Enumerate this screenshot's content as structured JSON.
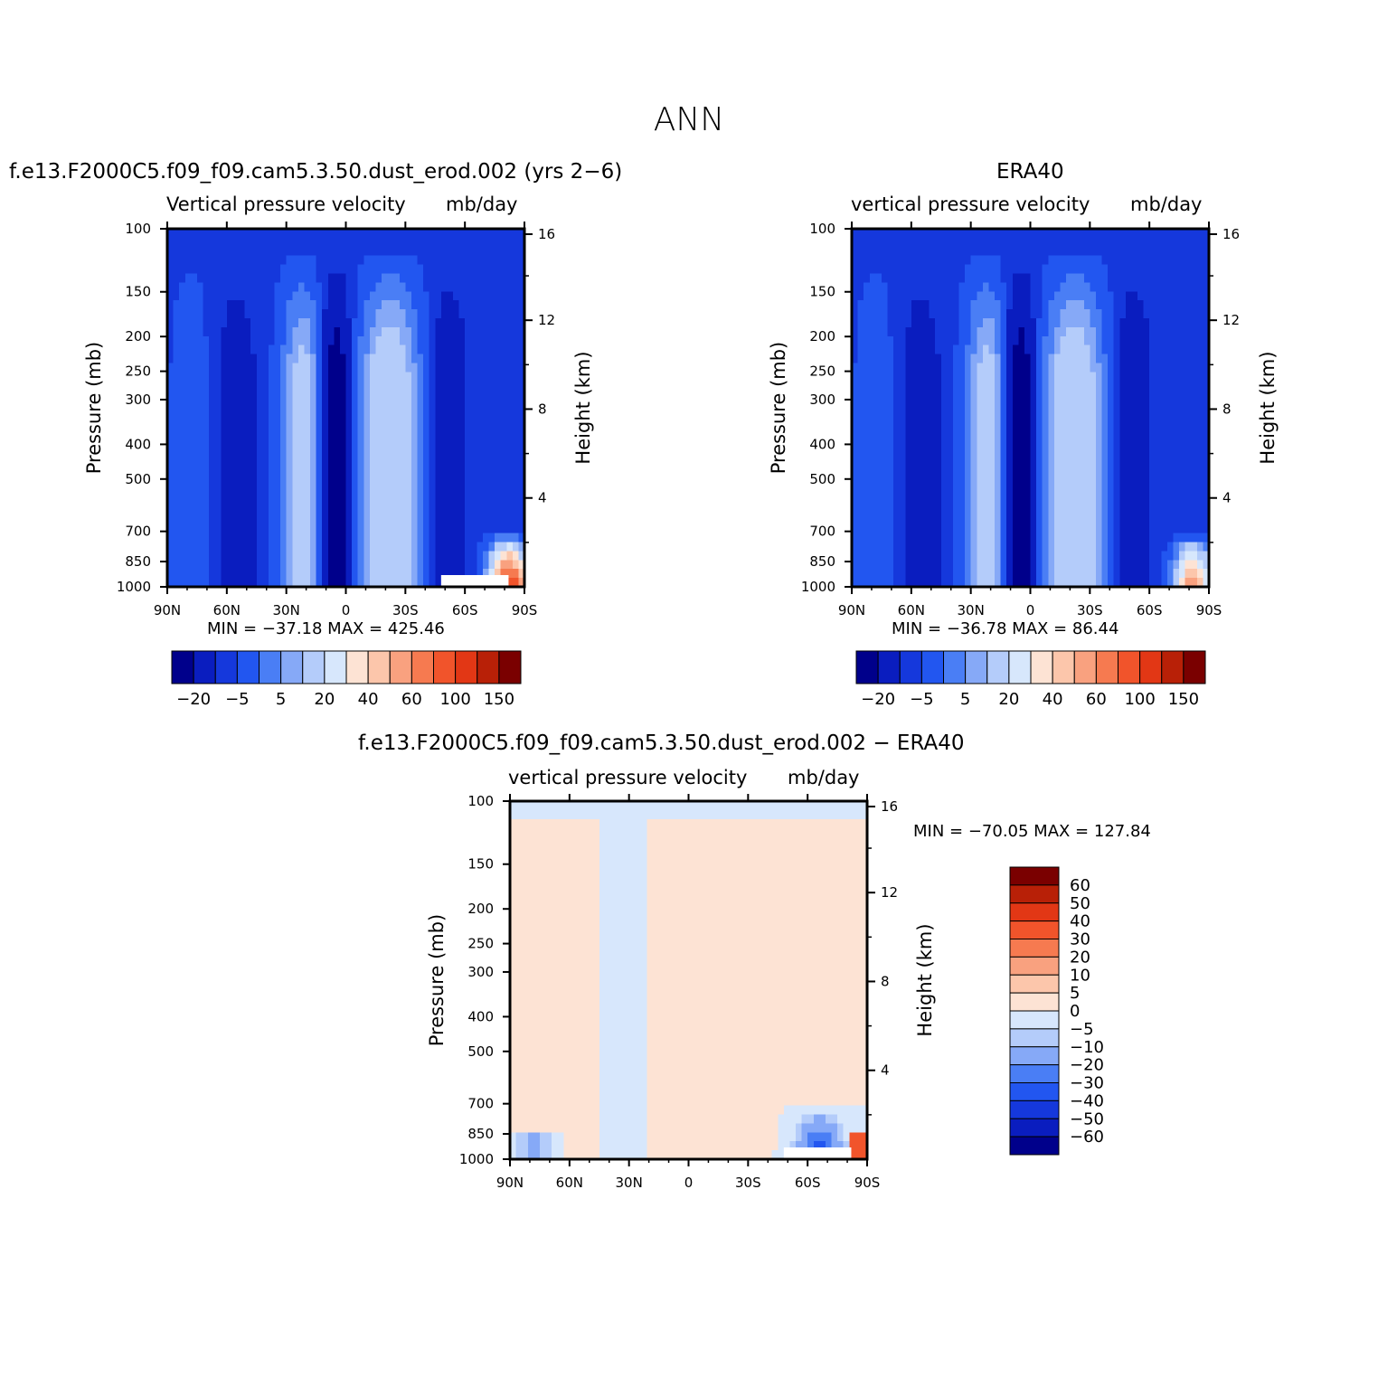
{
  "page": {
    "title": "ANN"
  },
  "panels": [
    {
      "id": "model",
      "case_title": "f.e13.F2000C5.f09_f09.cam5.3.50.dust_erod.002 (yrs 2−6)",
      "subtitle_left": "Vertical pressure velocity",
      "subtitle_right": "mb/day",
      "ylabel": "Pressure (mb)",
      "ylabel_right": "Height (km)",
      "minmax": "MIN = −37.18   MAX = 425.46"
    },
    {
      "id": "obs",
      "case_title": "ERA40",
      "subtitle_left": "vertical pressure velocity",
      "subtitle_right": "mb/day",
      "ylabel": "Pressure (mb)",
      "ylabel_right": "Height (km)",
      "minmax": "MIN = −36.78   MAX =  86.44"
    },
    {
      "id": "diff",
      "case_title": "f.e13.F2000C5.f09_f09.cam5.3.50.dust_erod.002 − ERA40",
      "subtitle_left": "vertical pressure velocity",
      "subtitle_right": "mb/day",
      "ylabel": "Pressure (mb)",
      "ylabel_right": "Height (km)",
      "minmax": "MIN = −70.05   MAX = 127.84"
    }
  ],
  "chart_data": [
    {
      "type": "heatmap",
      "panel": "model",
      "x_ticks": [
        "90N",
        "60N",
        "30N",
        "0",
        "30S",
        "60S",
        "90S"
      ],
      "x_values": [
        90,
        60,
        30,
        0,
        -30,
        -60,
        -90
      ],
      "y_ticks": [
        "100",
        "150",
        "200",
        "250",
        "300",
        "400",
        "500",
        "700",
        "850",
        "1000"
      ],
      "y_values": [
        100,
        150,
        200,
        250,
        300,
        400,
        500,
        700,
        850,
        1000
      ],
      "y_scale": "log",
      "ylim": [
        1000,
        100
      ],
      "right_y_ticks": [
        "4",
        "8",
        "12",
        "16"
      ],
      "colorbar": {
        "orientation": "horizontal",
        "labels": [
          "−20",
          "−5",
          "5",
          "20",
          "40",
          "60",
          "100",
          "150"
        ],
        "colors": [
          "#00008b",
          "#0a1dbf",
          "#1538dc",
          "#2256f0",
          "#4a7ef5",
          "#86a9f7",
          "#b4ccfa",
          "#d7e7fc",
          "#fde3d4",
          "#fcc6ab",
          "#f9a17f",
          "#f67a50",
          "#f1542b",
          "#e23715",
          "#b82007",
          "#7a0000"
        ]
      },
      "min": -37.18,
      "max": 425.46
    },
    {
      "type": "heatmap",
      "panel": "obs",
      "x_ticks": [
        "90N",
        "60N",
        "30N",
        "0",
        "30S",
        "60S",
        "90S"
      ],
      "x_values": [
        90,
        60,
        30,
        0,
        -30,
        -60,
        -90
      ],
      "y_ticks": [
        "100",
        "150",
        "200",
        "250",
        "300",
        "400",
        "500",
        "700",
        "850",
        "1000"
      ],
      "y_values": [
        100,
        150,
        200,
        250,
        300,
        400,
        500,
        700,
        850,
        1000
      ],
      "y_scale": "log",
      "ylim": [
        1000,
        100
      ],
      "right_y_ticks": [
        "4",
        "8",
        "12",
        "16"
      ],
      "colorbar": {
        "orientation": "horizontal",
        "labels": [
          "−20",
          "−5",
          "5",
          "20",
          "40",
          "60",
          "100",
          "150"
        ],
        "colors": [
          "#00008b",
          "#0a1dbf",
          "#1538dc",
          "#2256f0",
          "#4a7ef5",
          "#86a9f7",
          "#b4ccfa",
          "#d7e7fc",
          "#fde3d4",
          "#fcc6ab",
          "#f9a17f",
          "#f67a50",
          "#f1542b",
          "#e23715",
          "#b82007",
          "#7a0000"
        ]
      },
      "min": -36.78,
      "max": 86.44
    },
    {
      "type": "heatmap",
      "panel": "diff",
      "x_ticks": [
        "90N",
        "60N",
        "30N",
        "0",
        "30S",
        "60S",
        "90S"
      ],
      "x_values": [
        90,
        60,
        30,
        0,
        -30,
        -60,
        -90
      ],
      "y_ticks": [
        "100",
        "150",
        "200",
        "250",
        "300",
        "400",
        "500",
        "700",
        "850",
        "1000"
      ],
      "y_values": [
        100,
        150,
        200,
        250,
        300,
        400,
        500,
        700,
        850,
        1000
      ],
      "y_scale": "log",
      "ylim": [
        1000,
        100
      ],
      "right_y_ticks": [
        "4",
        "8",
        "12",
        "16"
      ],
      "colorbar": {
        "orientation": "vertical",
        "labels": [
          "60",
          "50",
          "40",
          "30",
          "20",
          "10",
          "5",
          "0",
          "−5",
          "−10",
          "−20",
          "−30",
          "−40",
          "−50",
          "−60"
        ],
        "colors": [
          "#7a0000",
          "#b82007",
          "#e23715",
          "#f1542b",
          "#f67a50",
          "#f9a17f",
          "#fcc6ab",
          "#fde3d4",
          "#d7e7fc",
          "#b4ccfa",
          "#86a9f7",
          "#4a7ef5",
          "#2256f0",
          "#1538dc",
          "#0a1dbf",
          "#00008b"
        ]
      },
      "min": -70.05,
      "max": 127.84
    }
  ]
}
